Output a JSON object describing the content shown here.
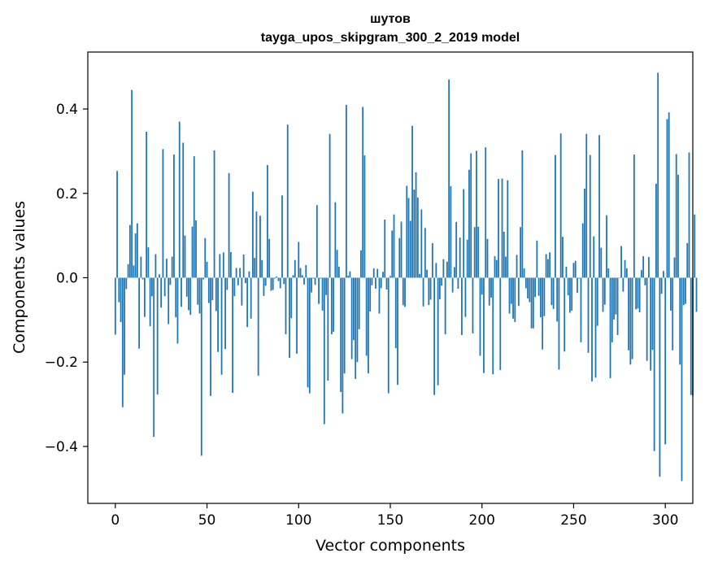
{
  "chart_data": {
    "type": "bar",
    "title_line1": "шутов",
    "title_line2": "tayga_upos_skipgram_300_2_2019 model",
    "xlabel": "Vector components",
    "ylabel": "Components values",
    "xlim": [
      -15,
      315
    ],
    "ylim": [
      -0.535,
      0.535
    ],
    "xticks": [
      0,
      50,
      100,
      150,
      200,
      250,
      300
    ],
    "xtick_labels": [
      "0",
      "50",
      "100",
      "150",
      "200",
      "250",
      "300"
    ],
    "yticks": [
      -0.4,
      -0.2,
      0.0,
      0.2,
      0.4
    ],
    "ytick_labels": [
      "−0.4",
      "−0.2",
      "0.0",
      "0.2",
      "0.4"
    ],
    "bar_color": "#1f77b4",
    "values": [
      -0.135,
      0.253,
      -0.058,
      -0.105,
      -0.307,
      -0.23,
      -0.027,
      0.032,
      0.125,
      0.445,
      0.029,
      0.105,
      0.129,
      -0.168,
      0.05,
      -0.004,
      -0.093,
      0.346,
      0.072,
      -0.115,
      -0.044,
      -0.377,
      0.056,
      -0.277,
      0.008,
      -0.071,
      0.305,
      -0.044,
      0.045,
      -0.11,
      -0.017,
      0.05,
      0.292,
      -0.094,
      -0.156,
      0.37,
      -0.069,
      0.32,
      0.1,
      -0.045,
      -0.077,
      -0.088,
      0.121,
      0.288,
      0.136,
      -0.064,
      -0.085,
      -0.422,
      -0.004,
      0.094,
      0.038,
      -0.06,
      -0.28,
      -0.053,
      0.302,
      -0.079,
      -0.176,
      0.056,
      -0.23,
      0.06,
      -0.169,
      -0.029,
      0.248,
      0.061,
      -0.273,
      -0.044,
      0.023,
      -0.018,
      0.023,
      -0.066,
      0.055,
      -0.013,
      -0.117,
      0.015,
      -0.097,
      0.204,
      0.047,
      0.157,
      -0.232,
      0.147,
      0.042,
      -0.043,
      -0.019,
      0.267,
      0.092,
      -0.031,
      -0.029,
      -0.002,
      0.003,
      -0.008,
      -0.025,
      0.195,
      -0.015,
      -0.134,
      0.363,
      -0.19,
      -0.096,
      0.006,
      0.042,
      -0.18,
      0.085,
      0.023,
      0.006,
      -0.016,
      0.03,
      -0.26,
      -0.274,
      -0.035,
      -0.002,
      -0.017,
      0.172,
      -0.062,
      -0.002,
      -0.078,
      -0.347,
      -0.041,
      -0.244,
      0.341,
      -0.134,
      -0.128,
      0.179,
      0.066,
      0.026,
      -0.271,
      -0.322,
      -0.227,
      0.41,
      0.005,
      0.015,
      -0.193,
      -0.148,
      -0.24,
      -0.2,
      -0.122,
      0.065,
      0.405,
      0.29,
      -0.185,
      -0.227,
      -0.08,
      -0.018,
      0.022,
      -0.026,
      0.021,
      -0.085,
      -0.025,
      0.014,
      0.138,
      -0.028,
      -0.274,
      0.004,
      0.112,
      0.15,
      -0.167,
      -0.254,
      0.094,
      0.133,
      -0.065,
      -0.069,
      0.218,
      0.189,
      0.135,
      0.36,
      0.209,
      0.25,
      0.19,
      0.009,
      0.162,
      -0.068,
      0.118,
      0.019,
      -0.065,
      -0.052,
      0.082,
      -0.278,
      0.035,
      -0.255,
      -0.051,
      -0.019,
      0.044,
      -0.134,
      0.038,
      0.47,
      0.217,
      -0.035,
      0.025,
      0.132,
      -0.026,
      0.095,
      -0.136,
      0.21,
      -0.093,
      0.09,
      0.256,
      0.295,
      -0.132,
      0.12,
      0.301,
      0.121,
      -0.185,
      -0.04,
      -0.226,
      0.309,
      0.092,
      -0.066,
      -0.047,
      -0.229,
      0.051,
      0.042,
      0.234,
      -0.219,
      0.235,
      0.109,
      0.05,
      0.231,
      -0.085,
      -0.062,
      -0.097,
      -0.105,
      0.054,
      -0.067,
      0.12,
      0.302,
      0.022,
      -0.025,
      -0.049,
      -0.058,
      -0.12,
      -0.12,
      -0.046,
      0.088,
      -0.043,
      -0.094,
      -0.17,
      -0.091,
      0.056,
      0.044,
      0.06,
      -0.065,
      -0.074,
      0.291,
      -0.104,
      -0.218,
      0.342,
      0.097,
      -0.175,
      0.026,
      -0.042,
      -0.083,
      -0.078,
      0.035,
      0.04,
      -0.036,
      -0.002,
      -0.153,
      0.129,
      0.211,
      0.341,
      -0.178,
      0.291,
      -0.246,
      0.098,
      -0.237,
      -0.114,
      0.338,
      0.071,
      -0.081,
      -0.064,
      0.148,
      0.022,
      -0.238,
      -0.153,
      -0.099,
      -0.087,
      -0.136,
      -0.001,
      0.075,
      -0.033,
      0.042,
      0.022,
      -0.172,
      -0.206,
      -0.193,
      0.292,
      -0.075,
      -0.073,
      -0.082,
      0.018,
      0.051,
      -0.018,
      -0.197,
      0.049,
      -0.22,
      -0.171,
      -0.411,
      0.223,
      0.486,
      -0.472,
      -0.038,
      0.016,
      -0.395,
      0.376,
      0.392,
      -0.078,
      -0.172,
      0.048,
      0.293,
      0.244,
      -0.206,
      -0.482,
      -0.065,
      -0.062,
      0.082,
      0.297,
      -0.278,
      -0.28,
      0.15,
      -0.081
    ]
  }
}
